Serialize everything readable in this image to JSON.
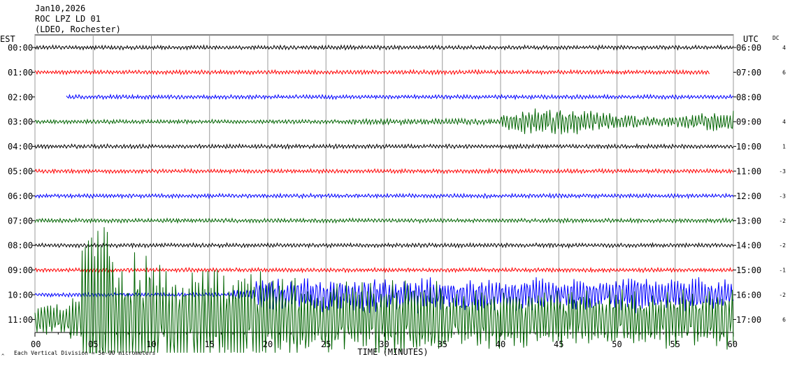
{
  "header": {
    "date": "Jan10,2026",
    "station": "ROC LPZ LD 01",
    "network": "(LDEO, Rochester)"
  },
  "chart_data": {
    "type": "line",
    "left_axis_title": "EST",
    "right_axis_title": "UTC",
    "dc_title": "DC",
    "xlabel": "TIME (MINUTES)",
    "footer_note": "Each Vertical Division = 5e-00 micrometers",
    "footer_mark": "^",
    "xlim": [
      0,
      60
    ],
    "x_ticks": [
      "00",
      "05",
      "10",
      "15",
      "20",
      "25",
      "30",
      "35",
      "40",
      "45",
      "50",
      "55",
      "60"
    ],
    "grid": true,
    "rows": [
      {
        "est": "00:00",
        "utc": "06:00",
        "dc": "4",
        "color": "#000000",
        "start_min": 0,
        "end_min": 60,
        "amplitude": "low"
      },
      {
        "est": "01:00",
        "utc": "07:00",
        "dc": "6",
        "color": "#ff0000",
        "start_min": 0,
        "end_min": 58,
        "amplitude": "low"
      },
      {
        "est": "02:00",
        "utc": "08:00",
        "dc": "",
        "color": "#0000ff",
        "start_min": 2.7,
        "end_min": 60,
        "amplitude": "low"
      },
      {
        "est": "03:00",
        "utc": "09:00",
        "dc": "4",
        "color": "#006400",
        "start_min": 0,
        "end_min": 60,
        "amplitude": "moderate from minute 40"
      },
      {
        "est": "04:00",
        "utc": "10:00",
        "dc": "1",
        "color": "#000000",
        "start_min": 0,
        "end_min": 60,
        "amplitude": "low"
      },
      {
        "est": "05:00",
        "utc": "11:00",
        "dc": "-3",
        "color": "#ff0000",
        "start_min": 0,
        "end_min": 60,
        "amplitude": "low"
      },
      {
        "est": "06:00",
        "utc": "12:00",
        "dc": "-3",
        "color": "#0000ff",
        "start_min": 0,
        "end_min": 60,
        "amplitude": "low"
      },
      {
        "est": "07:00",
        "utc": "13:00",
        "dc": "-2",
        "color": "#006400",
        "start_min": 0,
        "end_min": 60,
        "amplitude": "low"
      },
      {
        "est": "08:00",
        "utc": "14:00",
        "dc": "-2",
        "color": "#000000",
        "start_min": 0,
        "end_min": 60,
        "amplitude": "low"
      },
      {
        "est": "09:00",
        "utc": "15:00",
        "dc": "-1",
        "color": "#ff0000",
        "start_min": 0,
        "end_min": 60,
        "amplitude": "low"
      },
      {
        "est": "10:00",
        "utc": "16:00",
        "dc": "-2",
        "color": "#0000ff",
        "start_min": 0,
        "end_min": 60,
        "amplitude": "large from minute 19"
      },
      {
        "est": "11:00",
        "utc": "17:00",
        "dc": "6",
        "color": "#006400",
        "start_min": 0,
        "end_min": 60,
        "amplitude": "very large, clipped"
      }
    ]
  }
}
